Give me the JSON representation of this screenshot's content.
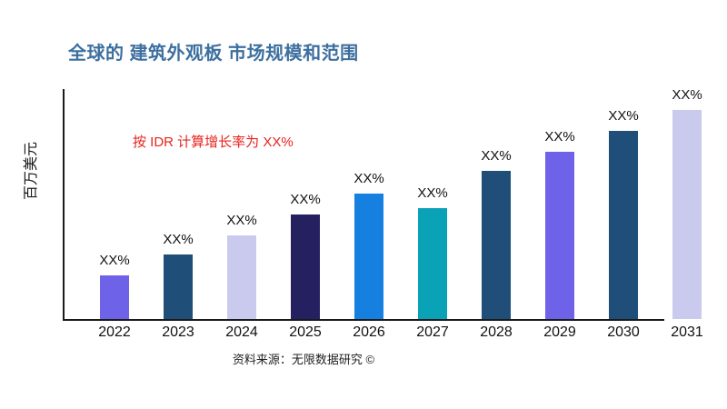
{
  "chart_data": {
    "type": "bar",
    "title": "全球的 建筑外观板 市场规模和范围",
    "title_color": "#3D6F9F",
    "ylabel": "百万美元",
    "xlabel": "",
    "annotation": "按 IDR 计算增长率为 XX%",
    "annotation_color": "#E8231E",
    "source": "资料来源：无限数据研究 ©",
    "categories": [
      "2022",
      "2023",
      "2024",
      "2025",
      "2026",
      "2027",
      "2028",
      "2029",
      "2030",
      "2031"
    ],
    "values": [
      21,
      31,
      40,
      50,
      60,
      53,
      71,
      80,
      90,
      100
    ],
    "values_note": "bar heights relative to tallest bar in % — actual figures are masked as XX% in the chart",
    "bar_labels": [
      "XX%",
      "XX%",
      "XX%",
      "XX%",
      "XX%",
      "XX%",
      "XX%",
      "XX%",
      "XX%",
      "XX%"
    ],
    "bar_colors": [
      "#6E62E9",
      "#1F4E79",
      "#CACAEF",
      "#252060",
      "#1680E0",
      "#0AA2B7",
      "#1F4E79",
      "#6E62E9",
      "#1F4E79",
      "#CACAEF"
    ],
    "grid": false,
    "legend": false,
    "axis_color": "#1a1a1a",
    "label_color": "#111111"
  }
}
